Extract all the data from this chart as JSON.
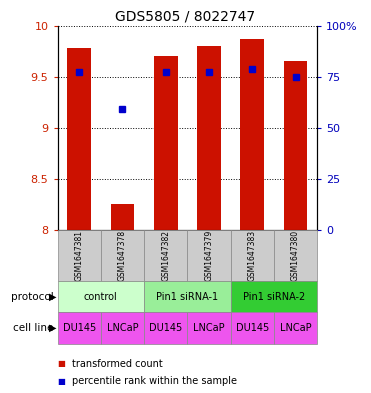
{
  "title": "GDS5805 / 8022747",
  "samples": [
    "GSM1647381",
    "GSM1647378",
    "GSM1647382",
    "GSM1647379",
    "GSM1647383",
    "GSM1647380"
  ],
  "bar_values": [
    9.78,
    8.25,
    9.7,
    9.8,
    9.87,
    9.65
  ],
  "percentile_values": [
    9.55,
    9.18,
    9.55,
    9.55,
    9.57,
    9.5
  ],
  "ylim_left": [
    8.0,
    10.0
  ],
  "ylim_right": [
    0,
    100
  ],
  "yticks_left": [
    8.0,
    8.5,
    9.0,
    9.5,
    10.0
  ],
  "yticks_right": [
    0,
    25,
    50,
    75,
    100
  ],
  "ytick_labels_right": [
    "0",
    "25",
    "50",
    "75",
    "100%"
  ],
  "bar_color": "#cc1100",
  "dot_color": "#0000cc",
  "protocols": [
    {
      "label": "control",
      "span": [
        0,
        2
      ],
      "color": "#ccffcc"
    },
    {
      "label": "Pin1 siRNA-1",
      "span": [
        2,
        4
      ],
      "color": "#99ee99"
    },
    {
      "label": "Pin1 siRNA-2",
      "span": [
        4,
        6
      ],
      "color": "#33cc33"
    }
  ],
  "cell_line_labels": [
    "DU145",
    "LNCaP",
    "DU145",
    "LNCaP",
    "DU145",
    "LNCaP"
  ],
  "cell_line_color": "#ee55ee",
  "legend_items": [
    {
      "label": "transformed count",
      "color": "#cc1100"
    },
    {
      "label": "percentile rank within the sample",
      "color": "#0000cc"
    }
  ],
  "bg_color": "#ffffff",
  "label_color_left": "#cc2200",
  "label_color_right": "#0000bb",
  "sample_box_color": "#cccccc",
  "title_fontsize": 10,
  "tick_fontsize": 8,
  "sample_fontsize": 5.5,
  "proto_fontsize": 7,
  "cell_fontsize": 7,
  "legend_fontsize": 7
}
